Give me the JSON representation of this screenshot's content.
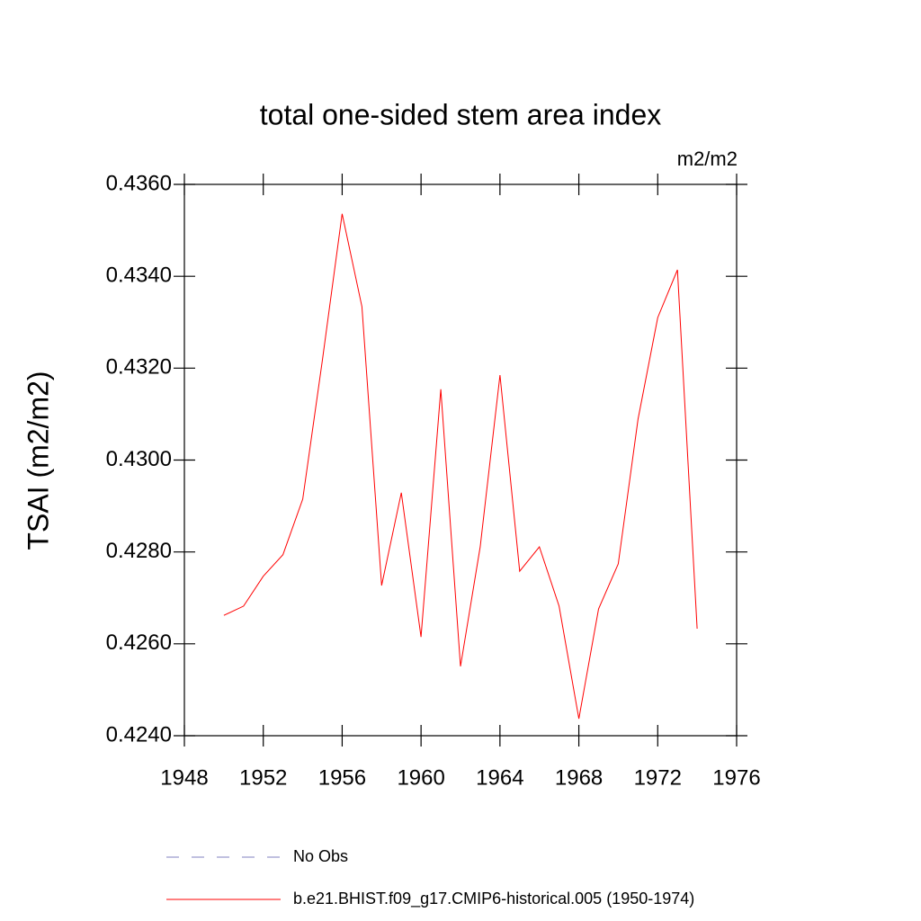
{
  "chart_data": {
    "type": "line",
    "title": "total one-sided stem area index",
    "units": "m2/m2",
    "y_label": "TSAI  (m2/m2)",
    "x": [
      1950,
      1951,
      1952,
      1953,
      1954,
      1955,
      1956,
      1957,
      1958,
      1959,
      1960,
      1961,
      1962,
      1963,
      1964,
      1965,
      1966,
      1967,
      1968,
      1969,
      1970,
      1971,
      1972,
      1973,
      1974
    ],
    "series": [
      {
        "name": "No Obs",
        "color": "#8080c0",
        "dash": "dashed",
        "values": [
          null,
          null,
          null,
          null,
          null,
          null,
          null,
          null,
          null,
          null,
          null,
          null,
          null,
          null,
          null,
          null,
          null,
          null,
          null,
          null,
          null,
          null,
          null,
          null,
          null
        ]
      },
      {
        "name": "b.e21.BHIST.f09_g17.CMIP6-historical.005 (1950-1974)",
        "color": "#ff0000",
        "dash": "solid",
        "values": [
          0.42662,
          0.42682,
          0.42747,
          0.42794,
          0.42915,
          0.43218,
          0.43536,
          0.43334,
          0.42727,
          0.42929,
          0.42615,
          0.43154,
          0.42551,
          0.42811,
          0.43185,
          0.42758,
          0.42811,
          0.42682,
          0.42437,
          0.42676,
          0.42774,
          0.43089,
          0.4331,
          0.43414,
          0.42633
        ]
      }
    ],
    "xlim": [
      1948,
      1976
    ],
    "xticks": [
      1948,
      1952,
      1956,
      1960,
      1964,
      1968,
      1972,
      1976
    ],
    "ylim": [
      0.424,
      0.436
    ],
    "yticks": [
      {
        "value": 0.424,
        "label": "0.4240"
      },
      {
        "value": 0.426,
        "label": "0.4260"
      },
      {
        "value": 0.428,
        "label": "0.4280"
      },
      {
        "value": 0.43,
        "label": "0.4300"
      },
      {
        "value": 0.432,
        "label": "0.4320"
      },
      {
        "value": 0.434,
        "label": "0.4340"
      },
      {
        "value": 0.436,
        "label": "0.4360"
      }
    ],
    "grid": false
  }
}
